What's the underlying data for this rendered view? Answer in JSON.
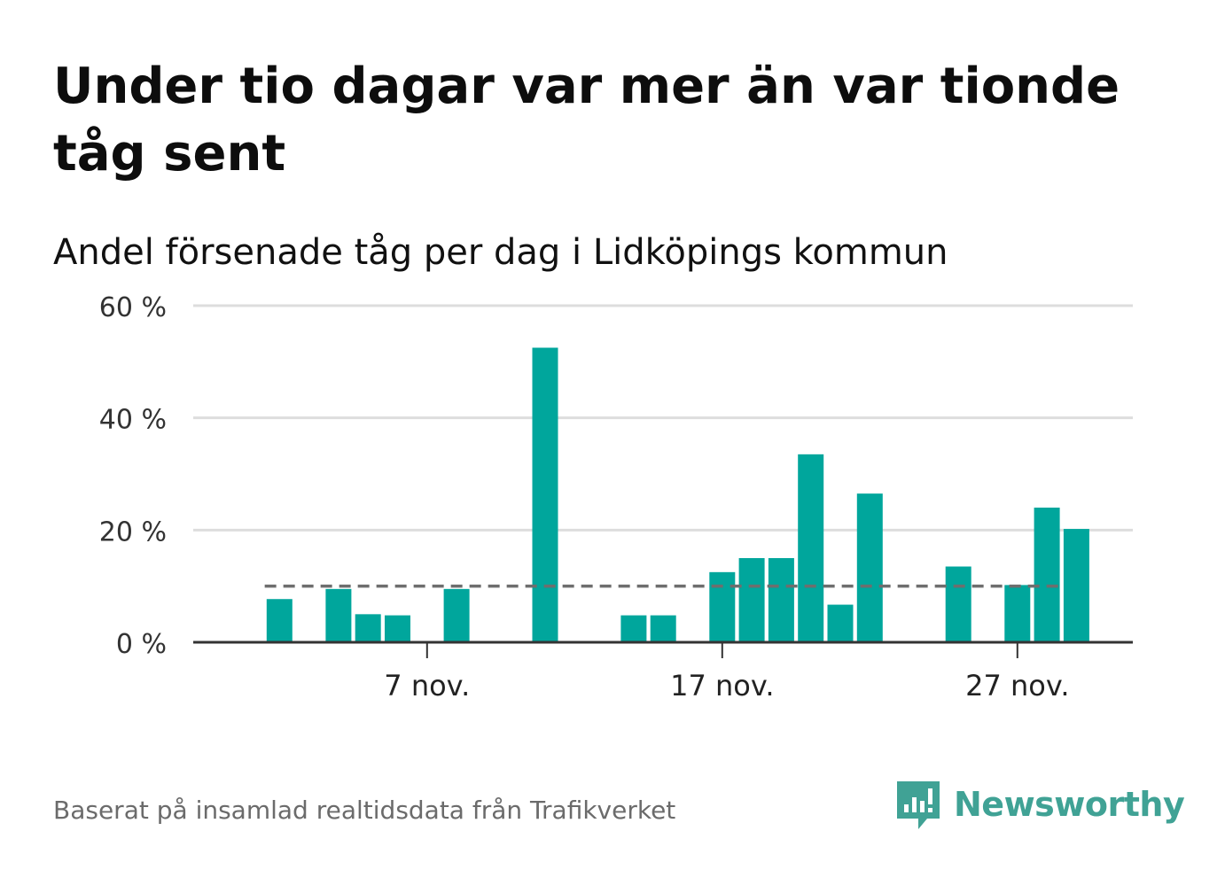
{
  "title": "Under tio dagar var mer än var tionde tåg sent",
  "subtitle": "Andel försenade tåg per dag i Lidköpings kommun",
  "source": "Baserat på insamlad realtidsdata från Trafikverket",
  "brand": {
    "name": "Newsworthy",
    "logo_icon": "newsworthy-chart-logo-icon"
  },
  "colors": {
    "bar": "#00a69c",
    "reference_line": "#6e6e6e",
    "grid": "#dddddd",
    "axis": "#333333",
    "brand": "#40a295"
  },
  "chart_data": {
    "type": "bar",
    "title": "Under tio dagar var mer än var tionde tåg sent",
    "subtitle": "Andel försenade tåg per dag i Lidköpings kommun",
    "x_axis": {
      "unit": "day of November",
      "range": [
        1,
        30
      ],
      "ticks": [
        {
          "day": 7,
          "label": "7 nov."
        },
        {
          "day": 17,
          "label": "17 nov."
        },
        {
          "day": 27,
          "label": "27 nov."
        }
      ]
    },
    "y_axis": {
      "range": [
        0,
        60
      ],
      "ticks": [
        {
          "value": 0,
          "label": "0 %"
        },
        {
          "value": 20,
          "label": "20 %"
        },
        {
          "value": 40,
          "label": "40 %"
        },
        {
          "value": 60,
          "label": "60 %"
        }
      ]
    },
    "grid": true,
    "reference_line": {
      "value": 10,
      "day_range": [
        1.5,
        28.5
      ],
      "style": "dashed"
    },
    "series": [
      {
        "x": [
          2,
          4,
          5,
          6,
          8,
          11,
          14,
          15,
          17,
          18,
          19,
          20,
          21,
          22,
          25,
          27,
          28,
          29
        ],
        "values": [
          7.7,
          9.5,
          5.0,
          4.8,
          9.5,
          52.5,
          4.8,
          4.8,
          12.5,
          15.0,
          15.0,
          33.5,
          6.7,
          26.5,
          13.5,
          10.2,
          24.0,
          20.2
        ]
      }
    ]
  }
}
